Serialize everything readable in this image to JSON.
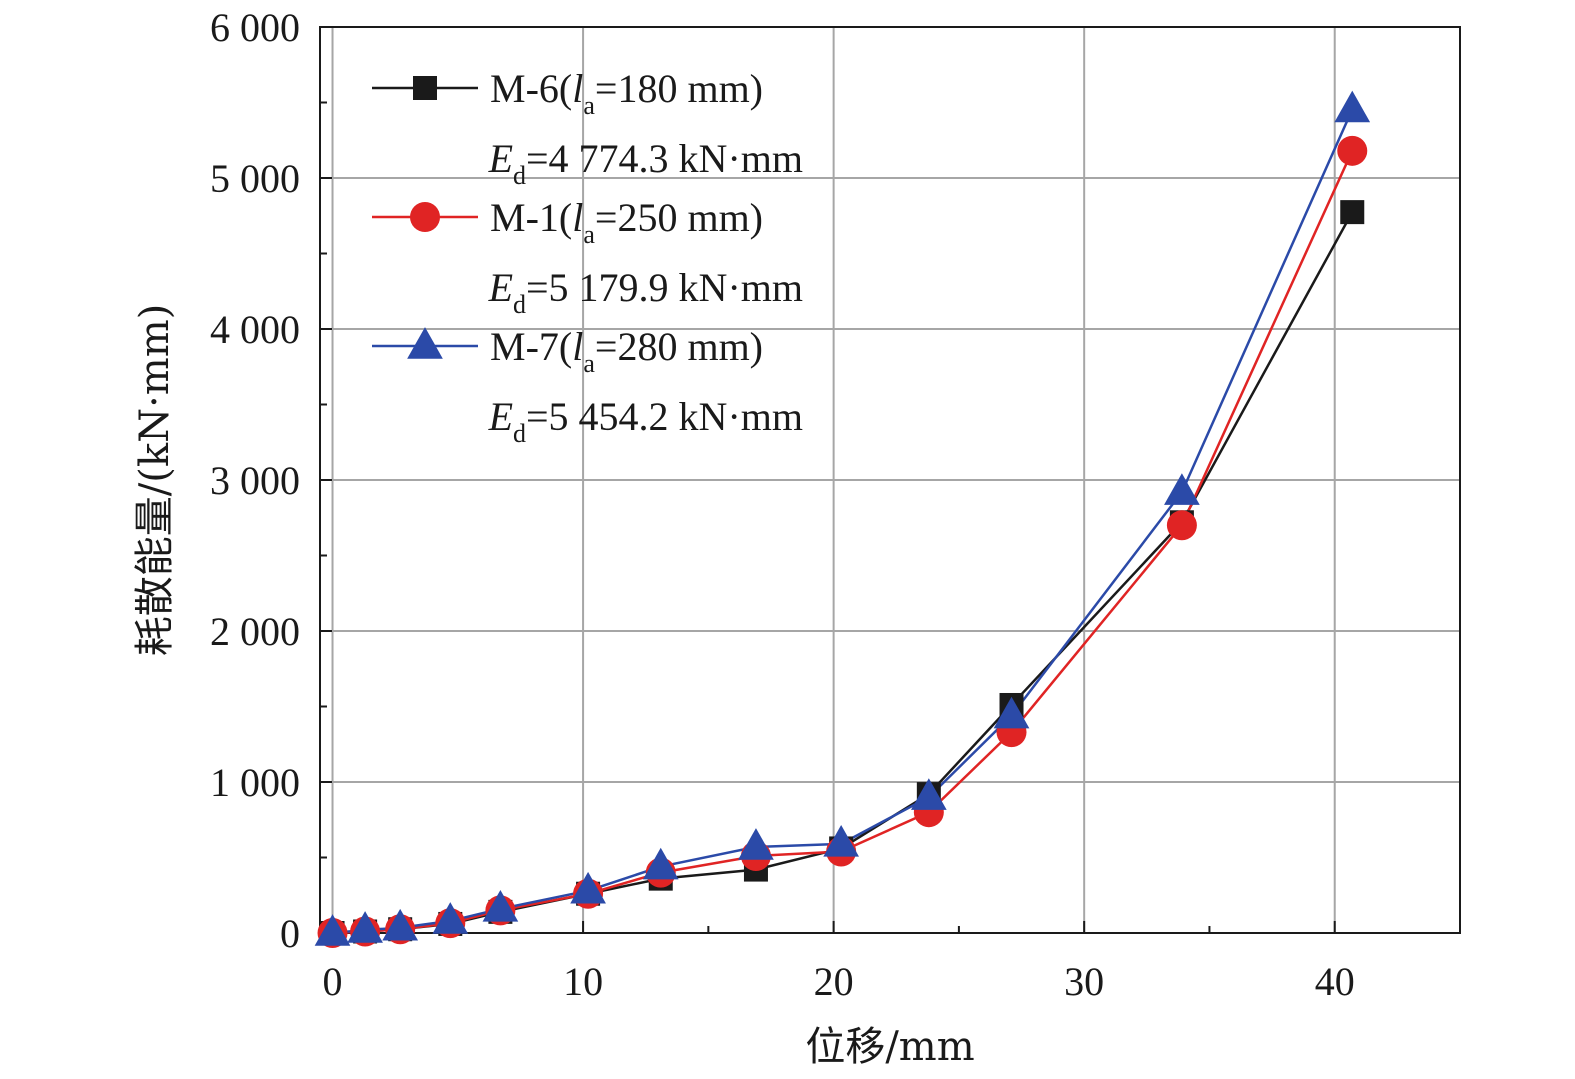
{
  "chart_data": {
    "type": "line",
    "xlabel": "位移/mm",
    "ylabel": "耗散能量/(kN·mm)",
    "xlim": [
      -0.5,
      45
    ],
    "ylim": [
      0,
      6000
    ],
    "x_ticks": [
      0,
      10,
      20,
      30,
      40
    ],
    "x_tick_labels": [
      "0",
      "10",
      "20",
      "30",
      "40"
    ],
    "y_ticks": [
      0,
      1000,
      2000,
      3000,
      4000,
      5000,
      6000
    ],
    "y_tick_labels": [
      "0",
      "1 000",
      "2 000",
      "3 000",
      "4 000",
      "5 000",
      "6 000"
    ],
    "grid": true,
    "legend_position": "top-left",
    "series": [
      {
        "name": "M-6",
        "la_value": "=180 mm)",
        "ed_value": "=4 774.3 kN·mm",
        "color": "#1a1a1a",
        "marker": "square",
        "x": [
          0,
          1.3,
          2.7,
          4.7,
          6.7,
          10.2,
          13.1,
          16.9,
          20.3,
          23.8,
          27.1,
          33.9,
          40.7
        ],
        "y": [
          0,
          10,
          25,
          60,
          140,
          260,
          360,
          420,
          560,
          920,
          1510,
          2720,
          4774
        ]
      },
      {
        "name": "M-1",
        "la_value": "=250 mm)",
        "ed_value": "=5 179.9 kN·mm",
        "color": "#e02424",
        "marker": "circle",
        "x": [
          0,
          1.3,
          2.7,
          4.7,
          6.7,
          10.2,
          13.1,
          16.9,
          20.3,
          23.8,
          27.1,
          33.9,
          40.7
        ],
        "y": [
          0,
          10,
          25,
          65,
          150,
          260,
          400,
          510,
          540,
          800,
          1330,
          2700,
          5180
        ]
      },
      {
        "name": "M-7",
        "la_value": "=280 mm)",
        "ed_value": "=5 454.2 kN·mm",
        "color": "#2b4aa8",
        "marker": "triangle",
        "x": [
          0,
          1.3,
          2.7,
          4.7,
          6.7,
          10.2,
          13.1,
          16.9,
          20.3,
          23.8,
          27.1,
          33.9,
          40.7
        ],
        "y": [
          0,
          20,
          35,
          80,
          160,
          280,
          440,
          570,
          590,
          900,
          1440,
          2920,
          5454
        ]
      }
    ]
  },
  "legend_text": {
    "la_prefix": "(l",
    "la_sub": "a",
    "ed_symbol": "E",
    "ed_sub": "d"
  }
}
